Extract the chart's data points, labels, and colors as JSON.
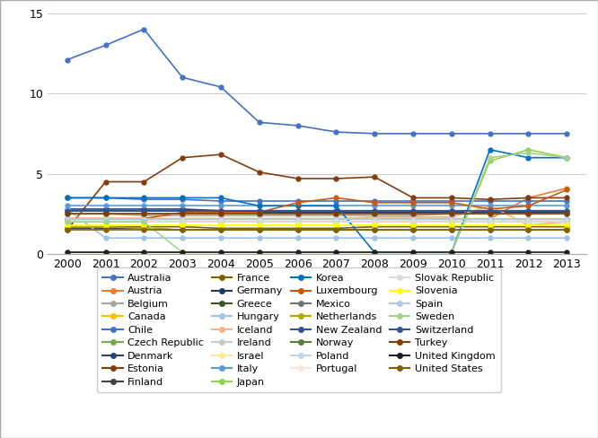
{
  "years": [
    2000,
    2001,
    2002,
    2003,
    2004,
    2005,
    2006,
    2007,
    2008,
    2009,
    2010,
    2011,
    2012,
    2013
  ],
  "countries": {
    "Australia": [
      12.1,
      13.0,
      14.0,
      11.0,
      10.4,
      8.2,
      8.0,
      7.6,
      7.5,
      7.5,
      7.5,
      7.5,
      7.5,
      7.5
    ],
    "Austria": [
      2.2,
      2.2,
      2.2,
      2.2,
      2.2,
      2.2,
      2.2,
      2.2,
      2.2,
      2.2,
      2.2,
      2.2,
      3.5,
      4.1
    ],
    "Belgium": [
      2.5,
      2.5,
      2.4,
      2.4,
      2.4,
      2.4,
      2.4,
      2.4,
      2.4,
      2.4,
      2.5,
      2.5,
      2.5,
      2.5
    ],
    "Canada": [
      2.0,
      2.0,
      2.0,
      2.0,
      2.0,
      2.0,
      2.0,
      2.0,
      2.0,
      2.0,
      2.0,
      2.0,
      2.0,
      2.0
    ],
    "Chile": [
      3.5,
      3.5,
      3.4,
      3.4,
      3.3,
      3.3,
      3.3,
      3.3,
      3.3,
      3.3,
      3.3,
      3.3,
      3.3,
      3.3
    ],
    "Czech Republic": [
      2.0,
      2.0,
      2.0,
      2.0,
      2.0,
      2.0,
      2.0,
      2.0,
      2.0,
      2.0,
      2.0,
      2.0,
      2.0,
      2.0
    ],
    "Denmark": [
      2.8,
      2.8,
      2.8,
      2.8,
      2.7,
      2.7,
      2.7,
      2.7,
      2.7,
      2.7,
      2.7,
      2.7,
      2.7,
      2.7
    ],
    "Estonia": [
      1.5,
      4.5,
      4.5,
      6.0,
      6.2,
      5.1,
      4.7,
      4.7,
      4.8,
      3.5,
      3.5,
      3.4,
      3.5,
      3.5
    ],
    "Finland": [
      1.6,
      1.6,
      1.6,
      1.5,
      1.5,
      1.5,
      1.5,
      1.5,
      1.5,
      1.5,
      1.5,
      1.5,
      1.5,
      1.5
    ],
    "France": [
      1.7,
      1.7,
      1.7,
      1.7,
      1.6,
      1.6,
      1.6,
      1.6,
      1.7,
      1.7,
      1.7,
      1.7,
      1.7,
      1.7
    ],
    "Germany": [
      2.7,
      2.7,
      2.7,
      2.7,
      2.7,
      2.6,
      2.6,
      2.6,
      2.6,
      2.6,
      2.6,
      2.6,
      2.6,
      2.6
    ],
    "Greece": [
      2.0,
      2.0,
      2.0,
      2.0,
      2.0,
      2.0,
      2.0,
      2.0,
      2.0,
      2.0,
      2.0,
      2.0,
      2.0,
      2.0
    ],
    "Hungary": [
      2.8,
      1.0,
      1.0,
      1.0,
      1.0,
      1.0,
      1.0,
      1.0,
      1.0,
      1.0,
      1.0,
      1.0,
      1.0,
      1.0
    ],
    "Iceland": [
      2.2,
      2.2,
      2.2,
      2.2,
      2.2,
      2.2,
      2.2,
      2.2,
      2.3,
      2.3,
      2.3,
      3.0,
      1.8,
      2.0
    ],
    "Ireland": [
      2.2,
      2.2,
      2.2,
      2.2,
      2.2,
      2.2,
      2.2,
      2.2,
      2.2,
      2.2,
      2.2,
      2.2,
      2.2,
      2.2
    ],
    "Israel": [
      2.1,
      2.1,
      2.1,
      2.1,
      2.1,
      2.1,
      2.1,
      2.1,
      2.1,
      2.1,
      2.1,
      2.1,
      2.1,
      2.1
    ],
    "Italy": [
      3.0,
      3.0,
      3.0,
      3.0,
      3.0,
      3.0,
      3.0,
      3.0,
      3.0,
      3.0,
      3.0,
      3.0,
      3.0,
      3.0
    ],
    "Japan": [
      0.1,
      0.1,
      0.1,
      0.1,
      0.1,
      0.1,
      0.1,
      0.1,
      0.1,
      0.1,
      0.1,
      5.8,
      6.5,
      6.0
    ],
    "Korea": [
      3.5,
      3.5,
      3.5,
      3.5,
      3.5,
      3.0,
      3.0,
      3.0,
      0.1,
      0.1,
      0.1,
      6.5,
      6.0,
      6.0
    ],
    "Luxembourg": [
      2.2,
      2.2,
      2.2,
      2.6,
      2.6,
      2.6,
      3.2,
      3.5,
      3.2,
      3.2,
      3.2,
      2.8,
      3.0,
      4.0
    ],
    "Mexico": [
      2.2,
      2.2,
      2.2,
      2.2,
      2.2,
      2.2,
      2.2,
      2.2,
      2.2,
      2.2,
      2.2,
      2.2,
      2.2,
      2.2
    ],
    "Netherlands": [
      1.7,
      1.7,
      1.6,
      1.5,
      1.5,
      1.5,
      1.5,
      1.5,
      1.5,
      1.5,
      1.5,
      1.5,
      1.5,
      1.5
    ],
    "New Zealand": [
      2.5,
      2.5,
      2.5,
      2.5,
      2.5,
      2.5,
      2.5,
      2.5,
      2.5,
      2.5,
      2.5,
      2.5,
      2.5,
      2.5
    ],
    "Norway": [
      2.5,
      2.5,
      2.5,
      2.5,
      2.5,
      2.5,
      2.5,
      2.5,
      2.5,
      2.5,
      2.5,
      2.5,
      2.5,
      2.5
    ],
    "Poland": [
      2.2,
      2.2,
      2.2,
      2.2,
      2.2,
      2.2,
      2.2,
      2.2,
      2.2,
      2.2,
      2.2,
      2.2,
      2.2,
      2.2
    ],
    "Portugal": [
      2.0,
      2.0,
      2.0,
      2.0,
      2.0,
      2.0,
      2.0,
      2.0,
      2.0,
      2.0,
      2.0,
      2.0,
      2.0,
      2.0
    ],
    "Slovak Republic": [
      2.0,
      2.0,
      2.0,
      2.0,
      2.0,
      2.0,
      2.0,
      2.0,
      2.0,
      2.0,
      2.0,
      2.0,
      2.0,
      2.0
    ],
    "Slovenia": [
      1.8,
      1.8,
      1.8,
      1.8,
      1.8,
      1.8,
      1.8,
      1.8,
      1.8,
      1.8,
      1.8,
      1.8,
      1.8,
      1.8
    ],
    "Spain": [
      2.5,
      2.5,
      2.5,
      2.5,
      2.5,
      2.5,
      2.5,
      2.5,
      2.5,
      2.5,
      2.5,
      2.5,
      2.5,
      2.5
    ],
    "Sweden": [
      2.0,
      2.0,
      2.0,
      0.1,
      0.1,
      0.1,
      0.1,
      0.1,
      0.1,
      0.1,
      0.1,
      6.0,
      6.3,
      6.0
    ],
    "Switzerland": [
      2.7,
      2.7,
      2.7,
      2.7,
      2.7,
      2.7,
      2.7,
      2.7,
      2.7,
      2.7,
      2.7,
      2.7,
      2.7,
      2.7
    ],
    "Turkey": [
      2.5,
      2.5,
      2.5,
      2.5,
      2.5,
      2.5,
      2.5,
      2.5,
      2.5,
      2.5,
      2.5,
      2.5,
      2.5,
      2.5
    ],
    "United Kingdom": [
      0.1,
      0.1,
      0.1,
      0.1,
      0.1,
      0.1,
      0.1,
      0.1,
      0.1,
      0.1,
      0.1,
      0.1,
      0.1,
      0.1
    ],
    "United States": [
      1.5,
      1.5,
      1.5,
      1.5,
      1.5,
      1.5,
      1.5,
      1.5,
      1.5,
      1.5,
      1.5,
      1.5,
      1.5,
      1.5
    ]
  },
  "colors": {
    "Australia": "#4472C4",
    "Austria": "#ED7D31",
    "Belgium": "#A5A5A5",
    "Canada": "#FFC000",
    "Chile": "#4472C4",
    "Czech Republic": "#70AD47",
    "Denmark": "#264478",
    "Estonia": "#843C0C",
    "Finland": "#404040",
    "France": "#7F6000",
    "Germany": "#203864",
    "Greece": "#375623",
    "Hungary": "#9DC3E6",
    "Iceland": "#F4B183",
    "Ireland": "#C9C9C9",
    "Israel": "#FFE699",
    "Italy": "#5B9BD5",
    "Japan": "#92D050",
    "Korea": "#0070C0",
    "Luxembourg": "#C55A11",
    "Mexico": "#757171",
    "Netherlands": "#AEAA00",
    "New Zealand": "#2F5496",
    "Norway": "#548235",
    "Poland": "#BDD7EE",
    "Portugal": "#FCE4D6",
    "Slovak Republic": "#DBDBDB",
    "Slovenia": "#FFFF00",
    "Spain": "#B4C7E7",
    "Sweden": "#A9D18E",
    "Switzerland": "#305496",
    "Turkey": "#833C00",
    "United Kingdom": "#1F1F1F",
    "United States": "#7F6000"
  },
  "legend_order": [
    "Australia",
    "Austria",
    "Belgium",
    "Canada",
    "Chile",
    "Czech Republic",
    "Denmark",
    "Estonia",
    "Finland",
    "France",
    "Germany",
    "Greece",
    "Hungary",
    "Iceland",
    "Ireland",
    "Israel",
    "Italy",
    "Japan",
    "Korea",
    "Luxembourg",
    "Mexico",
    "Netherlands",
    "New Zealand",
    "Norway",
    "Poland",
    "Portugal",
    "Slovak Republic",
    "Slovenia",
    "Spain",
    "Sweden",
    "Switzerland",
    "Turkey",
    "United Kingdom",
    "United States"
  ],
  "ylim": [
    0,
    15
  ],
  "yticks": [
    0,
    5,
    10,
    15
  ],
  "figsize": [
    6.66,
    4.88
  ],
  "dpi": 100
}
